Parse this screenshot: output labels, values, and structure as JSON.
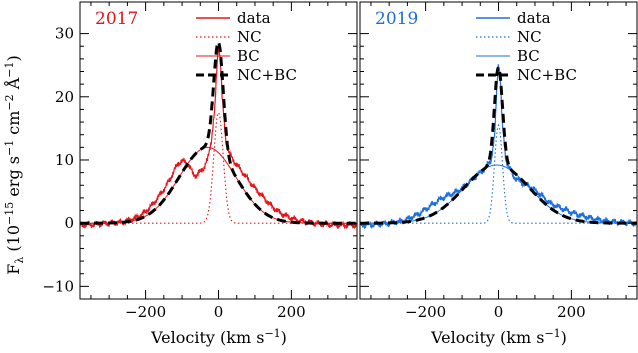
{
  "figure": {
    "ylabel": "F",
    "ylabel_sub": "λ",
    "ylabel_rest": " (10",
    "ylabel_exp1": "−15",
    "ylabel_mid1": " erg s",
    "ylabel_exp2": "−1",
    "ylabel_mid2": " cm",
    "ylabel_exp3": "−2",
    "ylabel_mid3": " Å",
    "ylabel_exp4": "−1",
    "ylabel_end": ")",
    "xlabel_main": "Velocity (km s",
    "xlabel_exp": "−1",
    "xlabel_end": ")"
  },
  "chart_data": [
    {
      "type": "line",
      "year": "2017",
      "year_color": "#e8141c",
      "data_color": "#e8141c",
      "xlim": [
        -380,
        380
      ],
      "ylim": [
        -12,
        35
      ],
      "xticks": [
        -200,
        0,
        200
      ],
      "yticks": [
        -10,
        0,
        10,
        20,
        30
      ],
      "legend": [
        "data",
        "NC",
        "BC",
        "NC+BC"
      ],
      "legend_position": "top-right",
      "components": {
        "nc": {
          "amp": 17.5,
          "center": 0,
          "sigma": 13
        },
        "bc": {
          "amp": 12,
          "center": -30,
          "sigma": 78
        }
      },
      "series": [
        {
          "name": "data",
          "x": [
            -380,
            -340,
            -300,
            -260,
            -220,
            -200,
            -180,
            -160,
            -140,
            -120,
            -110,
            -100,
            -90,
            -80,
            -70,
            -60,
            -50,
            -40,
            -30,
            -20,
            -10,
            -5,
            0,
            5,
            10,
            20,
            30,
            40,
            60,
            80,
            100,
            120,
            140,
            160,
            180,
            200,
            220,
            240,
            260,
            300,
            340,
            380
          ],
          "y": [
            -0.3,
            -0.2,
            0,
            0.2,
            1.0,
            1.8,
            3.0,
            4.5,
            6.2,
            8.5,
            9.5,
            9.8,
            9.7,
            9.0,
            7.8,
            7.5,
            8.2,
            8.8,
            10.0,
            13.0,
            18.0,
            24.0,
            28.5,
            26.0,
            20.0,
            13.0,
            11.0,
            10.0,
            8.5,
            7.0,
            5.5,
            4.3,
            3.0,
            2.0,
            1.3,
            0.8,
            0.4,
            0.2,
            0,
            -0.2,
            -0.3,
            -0.3
          ]
        },
        {
          "name": "NC+BC",
          "x": [
            -380,
            -340,
            -300,
            -260,
            -220,
            -180,
            -140,
            -100,
            -80,
            -60,
            -40,
            -30,
            -20,
            -10,
            -5,
            0,
            5,
            10,
            20,
            30,
            40,
            60,
            80,
            100,
            140,
            180,
            220,
            260,
            300,
            340,
            380
          ],
          "y": [
            0.01,
            0.04,
            0.15,
            0.5,
            1.3,
            2.9,
            5.4,
            8.4,
            9.8,
            11.0,
            11.8,
            12.1,
            13.5,
            19.2,
            24.1,
            28.5,
            26.5,
            22.2,
            12.8,
            9.3,
            8.6,
            7.0,
            5.3,
            3.9,
            1.7,
            0.6,
            0.16,
            0.04,
            0.01,
            0.0,
            0.0
          ]
        }
      ]
    },
    {
      "type": "line",
      "year": "2019",
      "year_color": "#1e6fe0",
      "data_color": "#1e6fe0",
      "xlim": [
        -380,
        380
      ],
      "ylim": [
        -12,
        35
      ],
      "xticks": [
        -200,
        0,
        200
      ],
      "yticks": [
        -10,
        0,
        10,
        20,
        30
      ],
      "legend": [
        "data",
        "NC",
        "BC",
        "NC+BC"
      ],
      "legend_position": "top-right",
      "components": {
        "nc": {
          "amp": 15.5,
          "center": 0,
          "sigma": 11
        },
        "bc": {
          "amp": 9.2,
          "center": -5,
          "sigma": 90
        }
      },
      "series": [
        {
          "name": "data",
          "x": [
            -380,
            -340,
            -300,
            -260,
            -220,
            -200,
            -180,
            -160,
            -140,
            -120,
            -100,
            -80,
            -60,
            -40,
            -20,
            -10,
            -5,
            0,
            5,
            10,
            20,
            40,
            60,
            80,
            100,
            120,
            140,
            160,
            180,
            200,
            220,
            240,
            260,
            280,
            300,
            340,
            380
          ],
          "y": [
            -0.3,
            -0.2,
            0,
            0.4,
            1.4,
            2.2,
            3.0,
            3.8,
            4.4,
            4.8,
            5.5,
            6.5,
            7.5,
            8.5,
            10.0,
            14.0,
            21.0,
            25.5,
            23.0,
            16.0,
            10.0,
            7.5,
            6.5,
            6.0,
            5.2,
            4.3,
            3.2,
            2.7,
            2.2,
            1.7,
            1.3,
            1.0,
            0.7,
            0.5,
            0.3,
            0.1,
            0.0
          ]
        },
        {
          "name": "NC+BC",
          "x": [
            -380,
            -340,
            -300,
            -260,
            -220,
            -180,
            -140,
            -100,
            -60,
            -40,
            -20,
            -10,
            -5,
            0,
            5,
            10,
            20,
            40,
            60,
            100,
            140,
            180,
            220,
            260,
            300,
            340,
            380
          ],
          "y": [
            0.0,
            0.05,
            0.2,
            0.7,
            1.6,
            3.0,
            4.8,
            6.8,
            8.4,
            8.9,
            10.5,
            16.0,
            21.5,
            24.6,
            21.3,
            15.7,
            10.2,
            8.3,
            7.4,
            4.7,
            2.6,
            1.2,
            0.45,
            0.14,
            0.04,
            0.0,
            0.0
          ]
        }
      ]
    }
  ]
}
